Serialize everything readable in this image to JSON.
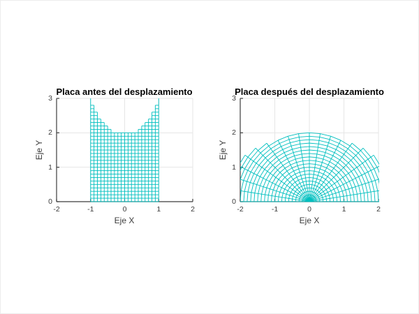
{
  "figure": {
    "background": "#ffffff",
    "mesh_color": "#00bfbf",
    "grid_color": "#e6e6e6",
    "axis_color": "#3c3c3c",
    "text_color": "#3c3c3c",
    "title_color": "#000000"
  },
  "chart_data": [
    {
      "type": "mesh",
      "title": "Placa antes del desplazamiento",
      "xlabel": "Eje X",
      "ylabel": "Eje Y",
      "xlim": [
        -2,
        2
      ],
      "ylim": [
        0,
        3
      ],
      "xticks": [
        -2,
        -1,
        0,
        1,
        2
      ],
      "yticks": [
        0,
        1,
        2,
        3
      ],
      "xticklabels": [
        "-2",
        "-1",
        "0",
        "1",
        "2"
      ],
      "yticklabels": [
        "0",
        "1",
        "2",
        "3"
      ],
      "grid": true,
      "box": false,
      "mesh": {
        "x_start": -1,
        "x_end": 1,
        "x_step": 0.1,
        "y_start": 0,
        "y_end": 3,
        "y_step": 0.1,
        "mask_max_y_expr": "2 + x*x",
        "transform": "identity",
        "description": "Rectangular plate mesh: x in [-1,1], y in [0, 2+x^2], grid step 0.1"
      }
    },
    {
      "type": "mesh",
      "title": "Placa después del desplazamiento",
      "xlabel": "Eje X",
      "ylabel": "Eje Y",
      "xlim": [
        -2,
        2
      ],
      "ylim": [
        0,
        3
      ],
      "xticks": [
        -2,
        -1,
        0,
        1,
        2
      ],
      "yticks": [
        0,
        1,
        2,
        3
      ],
      "xticklabels": [
        "-2",
        "-1",
        "0",
        "1",
        "2"
      ],
      "yticklabels": [
        "0",
        "1",
        "2",
        "3"
      ],
      "grid": true,
      "box": false,
      "mesh": {
        "x_start": -1,
        "x_end": 1,
        "x_step": 0.1,
        "y_start": 0,
        "y_end": 3,
        "y_step": 0.1,
        "mask_max_y_expr": "2 + x*x",
        "transform": "polar_bend",
        "transform_x_expr": "y * Math.sin(Math.PI * x / 2)",
        "transform_y_expr": "y * Math.cos(Math.PI * x / 2)",
        "description": "Same plate bent into a fan: radius = y, angle = pi/2 - x*pi/2, clipped to axes limits"
      }
    }
  ]
}
